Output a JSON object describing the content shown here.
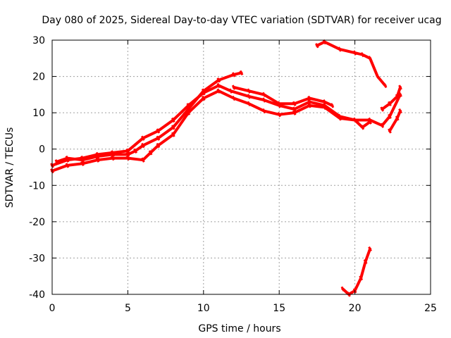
{
  "chart_data": {
    "type": "line",
    "title": "Day 080 of 2025, Sidereal Day-to-day VTEC variation (SDTVAR) for receiver ucag",
    "xlabel": "GPS time / hours",
    "ylabel": "SDTVAR / TECUs",
    "xlim": [
      0,
      25
    ],
    "ylim": [
      -40,
      30
    ],
    "x_ticks": [
      0,
      5,
      10,
      15,
      20,
      25
    ],
    "y_ticks": [
      -40,
      -30,
      -20,
      -10,
      0,
      10,
      20,
      30
    ],
    "grid": true,
    "series": [
      {
        "name": "track-a",
        "color": "#ff0000",
        "points": [
          [
            0.0,
            -4.5
          ],
          [
            1.0,
            -3.0
          ],
          [
            2.0,
            -2.5
          ],
          [
            3.0,
            -1.5
          ],
          [
            4.0,
            -1.0
          ],
          [
            5.0,
            -0.5
          ],
          [
            6.0,
            3.0
          ],
          [
            7.0,
            5.0
          ],
          [
            8.0,
            8.0
          ],
          [
            9.0,
            12.0
          ],
          [
            10.0,
            15.5
          ],
          [
            11.0,
            17.5
          ],
          [
            11.8,
            16.0
          ],
          [
            13.0,
            14.5
          ],
          [
            14.0,
            13.5
          ],
          [
            15.0,
            12.0
          ],
          [
            16.0,
            11.0
          ],
          [
            17.0,
            13.0
          ],
          [
            18.0,
            12.0
          ],
          [
            19.0,
            9.0
          ],
          [
            20.0,
            8.0
          ],
          [
            21.0,
            8.0
          ],
          [
            21.8,
            6.5
          ],
          [
            22.3,
            9.0
          ],
          [
            23.0,
            15.0
          ]
        ]
      },
      {
        "name": "track-b",
        "color": "#ff0000",
        "points": [
          [
            0.0,
            -6.0
          ],
          [
            1.0,
            -4.5
          ],
          [
            2.0,
            -4.0
          ],
          [
            3.0,
            -3.0
          ],
          [
            4.0,
            -2.5
          ],
          [
            5.0,
            -2.5
          ],
          [
            6.0,
            -3.0
          ],
          [
            6.5,
            -1.0
          ],
          [
            7.0,
            1.0
          ],
          [
            8.0,
            4.0
          ],
          [
            9.0,
            10.0
          ],
          [
            10.0,
            14.0
          ],
          [
            11.0,
            16.0
          ],
          [
            12.0,
            14.0
          ],
          [
            13.0,
            12.5
          ],
          [
            14.0,
            10.5
          ],
          [
            15.0,
            9.5
          ],
          [
            16.0,
            10.0
          ],
          [
            17.0,
            12.0
          ],
          [
            18.0,
            11.5
          ],
          [
            19.0,
            8.5
          ],
          [
            20.0,
            8.0
          ],
          [
            20.5,
            6.0
          ],
          [
            21.0,
            7.5
          ]
        ]
      },
      {
        "name": "track-c",
        "color": "#ff0000",
        "points": [
          [
            0.3,
            -3.5
          ],
          [
            1.0,
            -2.5
          ],
          [
            2.0,
            -3.0
          ],
          [
            3.0,
            -2.0
          ],
          [
            4.0,
            -1.5
          ],
          [
            5.0,
            -1.5
          ],
          [
            5.5,
            -0.5
          ],
          [
            6.0,
            1.0
          ],
          [
            7.0,
            3.0
          ],
          [
            8.0,
            6.0
          ],
          [
            9.0,
            11.0
          ],
          [
            10.0,
            16.0
          ],
          [
            11.0,
            19.0
          ],
          [
            12.0,
            20.5
          ],
          [
            12.5,
            21.0
          ]
        ]
      },
      {
        "name": "track-d",
        "color": "#ff0000",
        "points": [
          [
            12.0,
            17.0
          ],
          [
            13.0,
            16.0
          ],
          [
            14.0,
            15.0
          ],
          [
            15.0,
            12.5
          ],
          [
            16.0,
            12.5
          ],
          [
            17.0,
            14.0
          ],
          [
            18.0,
            13.0
          ],
          [
            18.5,
            12.0
          ]
        ]
      },
      {
        "name": "track-e",
        "color": "#ff0000",
        "points": [
          [
            17.5,
            28.5
          ],
          [
            18.0,
            29.5
          ],
          [
            19.0,
            27.5
          ],
          [
            20.0,
            26.5
          ],
          [
            20.5,
            26.0
          ],
          [
            21.0,
            25.0
          ],
          [
            21.5,
            20.0
          ],
          [
            22.0,
            17.5
          ]
        ]
      },
      {
        "name": "track-f",
        "color": "#ff0000",
        "points": [
          [
            22.3,
            5.0
          ],
          [
            22.8,
            8.5
          ],
          [
            23.0,
            10.5
          ]
        ]
      },
      {
        "name": "track-g",
        "color": "#ff0000",
        "points": [
          [
            21.8,
            11.0
          ],
          [
            22.3,
            12.5
          ],
          [
            22.8,
            14.5
          ],
          [
            23.0,
            17.0
          ]
        ]
      },
      {
        "name": "track-h",
        "color": "#ff0000",
        "points": [
          [
            19.2,
            -38.5
          ],
          [
            19.6,
            -40.0
          ],
          [
            20.0,
            -39.0
          ],
          [
            20.4,
            -35.5
          ],
          [
            20.7,
            -31.0
          ],
          [
            21.0,
            -27.5
          ]
        ]
      }
    ]
  }
}
